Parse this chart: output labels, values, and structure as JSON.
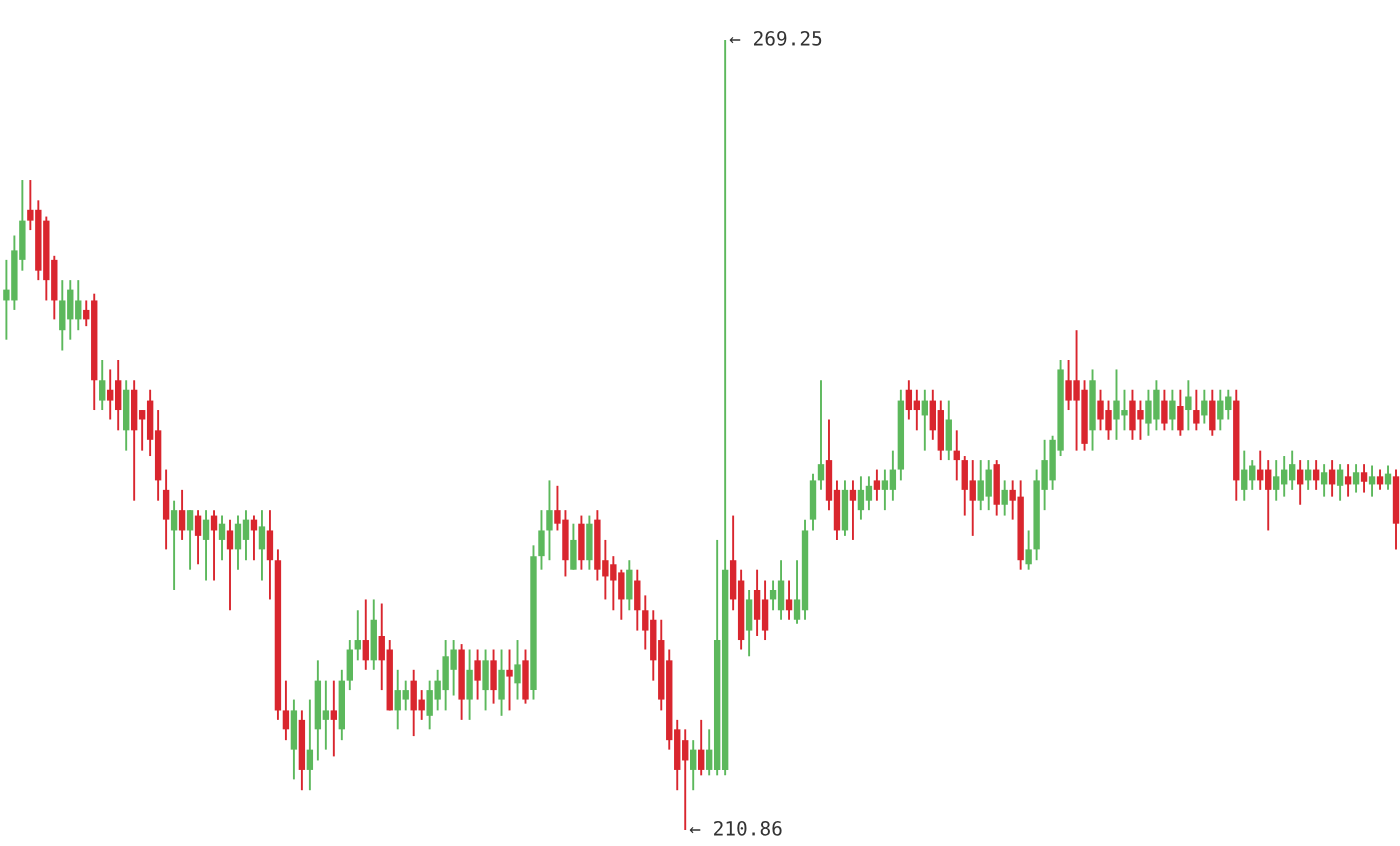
{
  "chart_data": {
    "type": "candlestick",
    "categories": [
      null,
      null,
      null,
      null,
      null,
      null,
      null,
      null,
      null,
      null,
      null,
      null,
      null,
      null,
      null,
      null,
      null,
      null,
      null,
      null,
      null,
      null,
      null,
      null,
      null,
      null,
      null,
      null,
      null,
      null,
      null,
      null,
      null,
      null,
      null,
      null,
      null,
      null,
      null,
      null,
      null,
      null,
      null,
      null,
      null,
      null,
      null,
      null,
      null,
      null,
      null,
      null,
      null,
      null,
      null,
      null,
      null,
      null,
      null,
      null,
      null,
      null,
      null,
      null,
      null,
      null,
      null,
      null,
      null,
      null,
      null,
      null,
      null,
      null,
      null,
      null,
      null,
      null,
      null,
      null,
      null,
      null,
      null,
      null,
      null,
      null,
      null,
      null,
      null,
      null,
      null,
      null,
      null,
      null,
      null,
      null,
      null,
      null,
      null,
      null,
      null,
      null,
      null,
      null,
      null,
      null,
      null,
      null,
      null,
      null,
      null,
      null,
      null,
      null,
      null,
      null,
      null,
      null,
      null,
      null,
      null,
      null,
      null,
      null,
      null,
      null,
      null,
      null,
      null,
      null,
      null,
      null,
      null,
      null,
      null,
      null,
      null,
      null,
      null,
      null,
      null,
      null,
      null,
      null,
      null,
      null,
      null,
      null,
      null,
      null,
      null,
      null,
      null,
      null,
      null,
      null,
      null,
      null,
      null,
      null,
      null,
      null,
      null,
      null,
      null,
      null,
      null,
      null,
      null,
      null,
      null,
      null,
      null,
      null,
      null
    ],
    "ohlc": [
      [
        250.0,
        253.0,
        247.1,
        250.8
      ],
      [
        250.0,
        254.8,
        249.3,
        253.7
      ],
      [
        253.0,
        258.9,
        252.2,
        255.9
      ],
      [
        256.7,
        258.9,
        255.2,
        255.9
      ],
      [
        256.7,
        257.4,
        251.5,
        252.2
      ],
      [
        255.9,
        256.2,
        250.0,
        251.5
      ],
      [
        253.0,
        253.3,
        248.6,
        250.0
      ],
      [
        247.8,
        251.5,
        246.3,
        250.0
      ],
      [
        248.6,
        251.5,
        247.1,
        250.8
      ],
      [
        248.6,
        251.5,
        247.8,
        250.0
      ],
      [
        249.3,
        250.0,
        248.1,
        248.6
      ],
      [
        250.0,
        250.5,
        241.9,
        244.1
      ],
      [
        242.6,
        245.6,
        241.9,
        244.1
      ],
      [
        243.4,
        244.9,
        241.2,
        242.6
      ],
      [
        244.1,
        245.6,
        240.4,
        241.9
      ],
      [
        240.4,
        244.1,
        238.9,
        243.4
      ],
      [
        243.4,
        244.1,
        235.2,
        240.4
      ],
      [
        241.9,
        241.9,
        238.9,
        241.2
      ],
      [
        242.6,
        243.4,
        238.5,
        239.7
      ],
      [
        240.4,
        241.9,
        235.2,
        236.7
      ],
      [
        236.0,
        237.5,
        231.6,
        233.8
      ],
      [
        233.0,
        235.2,
        228.6,
        234.5
      ],
      [
        234.5,
        236.0,
        232.3,
        233.0
      ],
      [
        233.0,
        234.5,
        230.1,
        234.5
      ],
      [
        234.1,
        234.5,
        230.5,
        232.6
      ],
      [
        232.3,
        234.5,
        229.3,
        233.8
      ],
      [
        234.1,
        234.5,
        229.3,
        233.0
      ],
      [
        232.3,
        234.1,
        230.8,
        233.5
      ],
      [
        233.0,
        233.8,
        227.1,
        231.6
      ],
      [
        231.6,
        234.1,
        230.1,
        233.5
      ],
      [
        232.3,
        234.5,
        230.8,
        233.8
      ],
      [
        233.8,
        234.1,
        230.8,
        233.0
      ],
      [
        231.6,
        234.5,
        229.3,
        233.3
      ],
      [
        233.0,
        234.5,
        227.9,
        230.8
      ],
      [
        230.8,
        231.6,
        219.0,
        219.7
      ],
      [
        219.7,
        221.9,
        217.5,
        218.3
      ],
      [
        216.8,
        220.5,
        214.6,
        219.7
      ],
      [
        219.0,
        219.7,
        213.8,
        215.3
      ],
      [
        215.3,
        220.5,
        213.8,
        216.8
      ],
      [
        218.3,
        223.4,
        216.0,
        221.9
      ],
      [
        219.0,
        221.9,
        216.8,
        219.7
      ],
      [
        219.7,
        221.9,
        216.3,
        219.0
      ],
      [
        218.3,
        222.7,
        217.5,
        221.9
      ],
      [
        221.9,
        224.9,
        221.2,
        224.2
      ],
      [
        224.2,
        227.1,
        223.4,
        224.9
      ],
      [
        224.9,
        227.9,
        222.7,
        223.4
      ],
      [
        223.4,
        227.9,
        222.7,
        226.4
      ],
      [
        225.2,
        227.6,
        221.2,
        223.4
      ],
      [
        224.2,
        224.9,
        219.7,
        219.7
      ],
      [
        219.7,
        222.7,
        218.3,
        221.2
      ],
      [
        220.5,
        221.9,
        219.7,
        221.2
      ],
      [
        221.9,
        222.7,
        217.8,
        219.7
      ],
      [
        220.5,
        221.2,
        219.0,
        219.7
      ],
      [
        219.3,
        221.9,
        218.3,
        221.2
      ],
      [
        220.5,
        222.7,
        219.7,
        221.9
      ],
      [
        221.2,
        224.9,
        219.7,
        223.7
      ],
      [
        222.7,
        224.9,
        220.8,
        224.2
      ],
      [
        224.2,
        224.6,
        219.0,
        220.5
      ],
      [
        220.5,
        224.2,
        219.0,
        222.7
      ],
      [
        223.4,
        224.2,
        220.5,
        221.9
      ],
      [
        221.2,
        224.2,
        219.7,
        223.4
      ],
      [
        223.4,
        224.2,
        220.2,
        221.2
      ],
      [
        220.5,
        224.2,
        219.3,
        222.7
      ],
      [
        222.7,
        224.2,
        219.7,
        222.2
      ],
      [
        221.7,
        224.9,
        220.5,
        223.1
      ],
      [
        223.4,
        224.2,
        220.2,
        220.5
      ],
      [
        221.2,
        231.9,
        220.5,
        231.1
      ],
      [
        231.1,
        234.5,
        230.1,
        233.0
      ],
      [
        233.0,
        236.7,
        230.8,
        234.5
      ],
      [
        234.5,
        236.3,
        233.0,
        233.5
      ],
      [
        233.8,
        234.5,
        229.6,
        230.8
      ],
      [
        230.1,
        233.5,
        230.1,
        232.3
      ],
      [
        233.5,
        234.1,
        230.1,
        230.8
      ],
      [
        230.8,
        234.1,
        230.1,
        233.5
      ],
      [
        233.8,
        234.5,
        229.3,
        230.1
      ],
      [
        230.8,
        232.3,
        227.9,
        229.6
      ],
      [
        230.5,
        231.1,
        227.1,
        229.3
      ],
      [
        229.9,
        230.1,
        226.4,
        227.9
      ],
      [
        227.9,
        230.8,
        227.1,
        230.1
      ],
      [
        229.3,
        230.1,
        225.6,
        227.1
      ],
      [
        227.1,
        228.2,
        224.2,
        225.6
      ],
      [
        226.4,
        227.1,
        221.9,
        223.4
      ],
      [
        224.9,
        226.4,
        219.7,
        220.5
      ],
      [
        223.4,
        224.2,
        216.8,
        217.5
      ],
      [
        218.3,
        219.0,
        213.8,
        215.3
      ],
      [
        217.5,
        218.3,
        210.86,
        216.0
      ],
      [
        215.3,
        217.5,
        213.8,
        216.8
      ],
      [
        216.8,
        219.0,
        214.9,
        215.3
      ],
      [
        215.3,
        218.3,
        214.9,
        216.8
      ],
      [
        215.3,
        232.3,
        214.9,
        224.9
      ],
      [
        215.3,
        269.25,
        214.9,
        230.1
      ],
      [
        230.8,
        234.1,
        227.1,
        227.9
      ],
      [
        229.3,
        230.1,
        224.2,
        224.9
      ],
      [
        225.6,
        228.6,
        223.7,
        227.9
      ],
      [
        228.6,
        230.1,
        225.2,
        226.4
      ],
      [
        227.9,
        229.3,
        224.9,
        225.6
      ],
      [
        227.9,
        229.3,
        227.1,
        228.6
      ],
      [
        227.1,
        230.8,
        226.4,
        229.3
      ],
      [
        227.9,
        229.3,
        226.4,
        227.1
      ],
      [
        226.4,
        230.8,
        226.1,
        227.9
      ],
      [
        227.1,
        233.8,
        226.4,
        233.0
      ],
      [
        233.8,
        237.2,
        233.0,
        236.7
      ],
      [
        236.7,
        244.1,
        236.0,
        237.9
      ],
      [
        238.2,
        241.2,
        234.5,
        235.2
      ],
      [
        236.0,
        236.7,
        232.3,
        233.0
      ],
      [
        233.0,
        236.7,
        232.6,
        236.0
      ],
      [
        236.0,
        236.7,
        232.3,
        235.2
      ],
      [
        234.5,
        237.0,
        233.8,
        236.0
      ],
      [
        235.2,
        237.0,
        234.5,
        236.3
      ],
      [
        236.7,
        237.5,
        235.2,
        236.0
      ],
      [
        236.0,
        237.5,
        234.5,
        236.7
      ],
      [
        236.0,
        238.9,
        235.2,
        237.5
      ],
      [
        237.5,
        243.4,
        236.7,
        242.6
      ],
      [
        243.4,
        244.1,
        241.2,
        241.9
      ],
      [
        242.6,
        243.4,
        240.4,
        241.9
      ],
      [
        241.5,
        243.4,
        238.9,
        242.6
      ],
      [
        242.6,
        243.4,
        239.7,
        240.4
      ],
      [
        241.9,
        242.6,
        238.2,
        238.9
      ],
      [
        238.9,
        242.6,
        238.2,
        241.2
      ],
      [
        238.9,
        240.4,
        236.7,
        238.2
      ],
      [
        238.2,
        238.5,
        234.1,
        236.0
      ],
      [
        236.7,
        238.2,
        232.6,
        235.2
      ],
      [
        235.2,
        238.2,
        234.5,
        236.7
      ],
      [
        235.5,
        238.2,
        234.5,
        237.5
      ],
      [
        237.9,
        238.2,
        234.1,
        234.9
      ],
      [
        234.9,
        236.7,
        234.1,
        236.0
      ],
      [
        236.0,
        236.7,
        233.8,
        235.2
      ],
      [
        235.5,
        236.7,
        230.1,
        230.8
      ],
      [
        230.5,
        233.0,
        230.1,
        231.6
      ],
      [
        231.6,
        237.5,
        230.8,
        236.7
      ],
      [
        236.0,
        239.7,
        234.5,
        238.2
      ],
      [
        236.7,
        240.0,
        236.0,
        239.7
      ],
      [
        238.9,
        245.6,
        238.5,
        244.9
      ],
      [
        244.1,
        245.6,
        241.9,
        242.6
      ],
      [
        244.1,
        247.8,
        238.9,
        242.6
      ],
      [
        243.4,
        244.1,
        238.9,
        239.4
      ],
      [
        240.4,
        244.9,
        238.9,
        244.1
      ],
      [
        242.6,
        243.4,
        240.4,
        241.2
      ],
      [
        241.9,
        242.6,
        239.7,
        240.4
      ],
      [
        241.2,
        244.9,
        239.7,
        242.6
      ],
      [
        241.5,
        243.4,
        240.4,
        241.9
      ],
      [
        242.6,
        243.4,
        239.7,
        240.4
      ],
      [
        241.9,
        242.6,
        239.7,
        241.2
      ],
      [
        240.9,
        243.4,
        240.0,
        242.6
      ],
      [
        241.2,
        244.1,
        240.4,
        243.4
      ],
      [
        242.6,
        243.4,
        240.4,
        240.9
      ],
      [
        241.2,
        243.4,
        240.4,
        242.6
      ],
      [
        242.2,
        243.4,
        240.0,
        240.4
      ],
      [
        241.9,
        244.1,
        240.4,
        242.9
      ],
      [
        241.9,
        243.4,
        240.4,
        240.9
      ],
      [
        241.5,
        243.4,
        240.9,
        242.6
      ],
      [
        242.6,
        243.4,
        240.0,
        240.4
      ],
      [
        241.2,
        243.4,
        240.4,
        242.6
      ],
      [
        241.9,
        243.4,
        241.2,
        242.9
      ],
      [
        242.6,
        243.4,
        235.2,
        236.7
      ],
      [
        236.0,
        238.9,
        235.2,
        237.5
      ],
      [
        236.7,
        238.2,
        236.0,
        237.8
      ],
      [
        237.5,
        238.9,
        236.0,
        236.7
      ],
      [
        237.5,
        238.2,
        233.0,
        236.0
      ],
      [
        236.0,
        238.2,
        235.2,
        237.0
      ],
      [
        236.4,
        238.5,
        235.5,
        237.5
      ],
      [
        236.7,
        238.9,
        236.0,
        237.9
      ],
      [
        237.5,
        238.2,
        234.9,
        236.4
      ],
      [
        236.7,
        238.2,
        236.0,
        237.5
      ],
      [
        237.5,
        238.2,
        236.0,
        236.7
      ],
      [
        236.4,
        237.9,
        235.5,
        237.3
      ],
      [
        237.5,
        238.2,
        235.5,
        236.4
      ],
      [
        236.3,
        237.9,
        235.2,
        237.5
      ],
      [
        237.0,
        237.9,
        235.5,
        236.4
      ],
      [
        236.4,
        237.9,
        235.8,
        237.3
      ],
      [
        237.3,
        237.9,
        235.8,
        236.6
      ],
      [
        236.4,
        237.8,
        235.5,
        237.0
      ],
      [
        237.0,
        237.5,
        236.0,
        236.4
      ],
      [
        236.4,
        237.8,
        236.0,
        237.2
      ],
      [
        237.0,
        237.5,
        231.6,
        233.5
      ]
    ],
    "colors": [
      "#5cb85c",
      "#5cb85c",
      "#5cb85c",
      "#d9262e",
      "#d9262e",
      "#d9262e",
      "#d9262e",
      "#5cb85c",
      "#5cb85c",
      "#5cb85c",
      "#d9262e",
      "#d9262e",
      "#5cb85c",
      "#d9262e",
      "#d9262e",
      "#5cb85c",
      "#d9262e",
      "#d9262e",
      "#d9262e",
      "#d9262e",
      "#d9262e",
      "#5cb85c",
      "#d9262e",
      "#5cb85c",
      "#d9262e",
      "#5cb85c",
      "#d9262e",
      "#5cb85c",
      "#d9262e",
      "#5cb85c",
      "#5cb85c",
      "#d9262e",
      "#5cb85c",
      "#d9262e",
      "#d9262e",
      "#d9262e",
      "#5cb85c",
      "#d9262e",
      "#5cb85c",
      "#5cb85c",
      "#5cb85c",
      "#d9262e",
      "#5cb85c",
      "#5cb85c",
      "#5cb85c",
      "#d9262e",
      "#5cb85c",
      "#d9262e",
      "#d9262e",
      "#5cb85c",
      "#5cb85c",
      "#d9262e",
      "#d9262e",
      "#5cb85c",
      "#5cb85c",
      "#5cb85c",
      "#5cb85c",
      "#d9262e",
      "#5cb85c",
      "#d9262e",
      "#5cb85c",
      "#d9262e",
      "#5cb85c",
      "#d9262e",
      "#5cb85c",
      "#d9262e",
      "#5cb85c",
      "#5cb85c",
      "#5cb85c",
      "#d9262e",
      "#d9262e",
      "#5cb85c",
      "#d9262e",
      "#5cb85c",
      "#d9262e",
      "#d9262e",
      "#d9262e",
      "#d9262e",
      "#5cb85c",
      "#d9262e",
      "#d9262e",
      "#d9262e",
      "#d9262e",
      "#d9262e",
      "#d9262e",
      "#d9262e",
      "#5cb85c",
      "#d9262e",
      "#5cb85c",
      "#5cb85c",
      "#5cb85c",
      "#d9262e",
      "#d9262e",
      "#5cb85c",
      "#d9262e",
      "#d9262e",
      "#5cb85c",
      "#5cb85c",
      "#d9262e",
      "#5cb85c",
      "#5cb85c",
      "#5cb85c",
      "#5cb85c",
      "#d9262e",
      "#d9262e",
      "#5cb85c",
      "#d9262e",
      "#5cb85c",
      "#5cb85c",
      "#d9262e",
      "#5cb85c",
      "#5cb85c",
      "#5cb85c",
      "#d9262e",
      "#d9262e",
      "#5cb85c",
      "#d9262e",
      "#d9262e",
      "#5cb85c",
      "#d9262e",
      "#d9262e",
      "#d9262e",
      "#5cb85c",
      "#5cb85c",
      "#d9262e",
      "#5cb85c",
      "#d9262e",
      "#d9262e",
      "#5cb85c",
      "#5cb85c",
      "#5cb85c",
      "#5cb85c",
      "#5cb85c",
      "#d9262e",
      "#d9262e",
      "#d9262e",
      "#5cb85c",
      "#d9262e",
      "#d9262e",
      "#5cb85c",
      "#5cb85c",
      "#d9262e",
      "#d9262e",
      "#5cb85c",
      "#5cb85c",
      "#d9262e",
      "#5cb85c",
      "#d9262e",
      "#5cb85c",
      "#d9262e",
      "#5cb85c",
      "#d9262e",
      "#5cb85c",
      "#5cb85c",
      "#d9262e",
      "#5cb85c",
      "#5cb85c",
      "#d9262e",
      "#d9262e",
      "#5cb85c",
      "#5cb85c",
      "#5cb85c",
      "#d9262e",
      "#5cb85c",
      "#d9262e",
      "#5cb85c",
      "#d9262e",
      "#5cb85c",
      "#d9262e",
      "#5cb85c",
      "#d9262e",
      "#5cb85c",
      "#d9262e",
      "#5cb85c",
      "#d9262e"
    ],
    "annotations": [
      "← 269.25",
      "← 210.86"
    ]
  }
}
